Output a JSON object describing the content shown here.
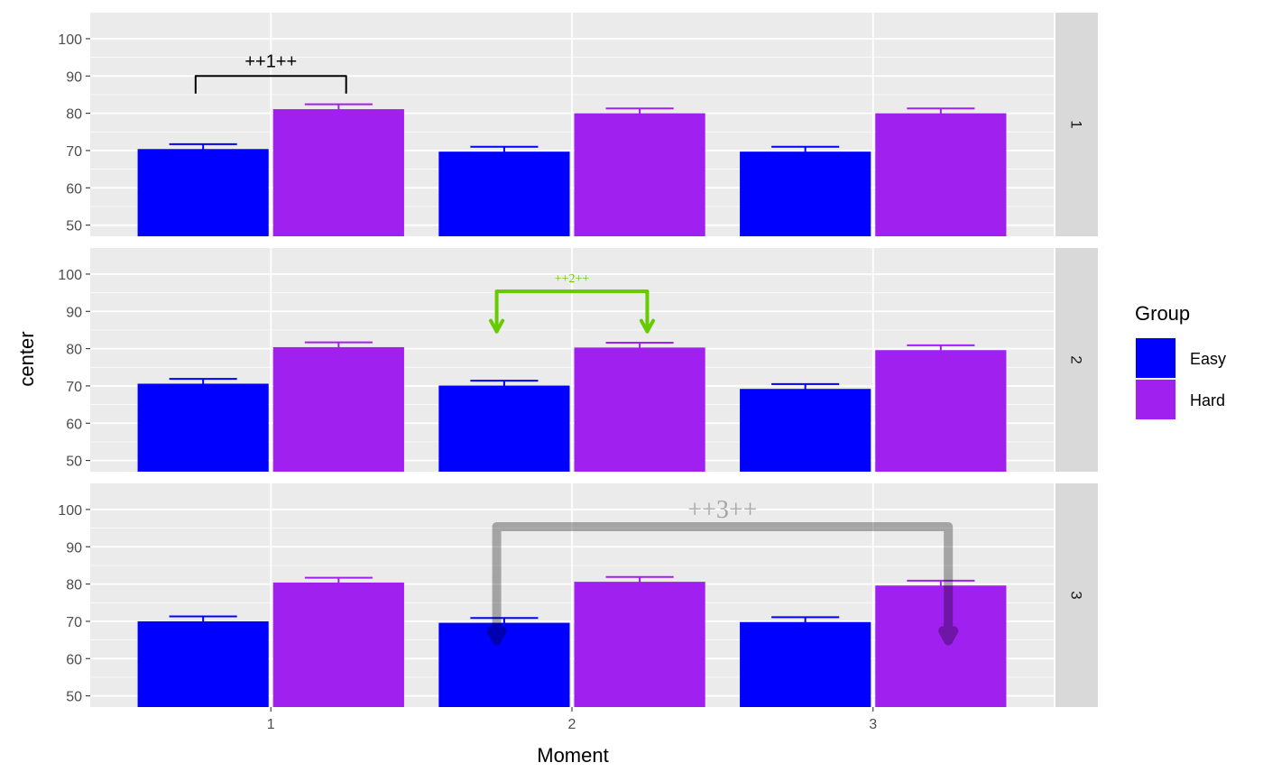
{
  "chart_data": {
    "type": "bar",
    "xlabel": "Moment",
    "ylabel": "center",
    "categories": [
      "1",
      "2",
      "3"
    ],
    "ylim": [
      47,
      107
    ],
    "yticks": [
      50,
      60,
      70,
      80,
      90,
      100
    ],
    "grid": true,
    "colors": {
      "Easy": "#0000FF",
      "Hard": "#A020F0",
      "panel": "#EBEBEB",
      "strip": "#D9D9D9"
    },
    "legend": {
      "title": "Group",
      "position": "right",
      "entries": [
        "Easy",
        "Hard"
      ]
    },
    "facets": [
      {
        "label": "1",
        "series": [
          {
            "name": "Easy",
            "values": [
              70.4,
              69.7,
              69.7
            ],
            "errors": [
              1.3,
              1.3,
              1.3
            ]
          },
          {
            "name": "Hard",
            "values": [
              81.1,
              80.0,
              80.0
            ],
            "errors": [
              1.3,
              1.3,
              1.3
            ]
          }
        ],
        "bracket": {
          "label": "++1++",
          "from": 0.75,
          "to": 1.25,
          "y": 90,
          "tip_y": 85.3,
          "color": "#000000",
          "opacity": 1,
          "arrow": false,
          "label_size": 20
        }
      },
      {
        "label": "2",
        "series": [
          {
            "name": "Easy",
            "values": [
              70.6,
              70.1,
              69.2
            ],
            "errors": [
              1.3,
              1.3,
              1.3
            ]
          },
          {
            "name": "Hard",
            "values": [
              80.4,
              80.3,
              79.6
            ],
            "errors": [
              1.3,
              1.3,
              1.3
            ]
          }
        ],
        "bracket": {
          "label": "++2++",
          "from": 1.75,
          "to": 2.25,
          "y": 95.4,
          "tip_y": 84.6,
          "color": "#66CC00",
          "opacity": 1,
          "arrow": true,
          "label_size": 14
        }
      },
      {
        "label": "3",
        "series": [
          {
            "name": "Easy",
            "values": [
              70.0,
              69.6,
              69.8
            ],
            "errors": [
              1.3,
              1.3,
              1.3
            ]
          },
          {
            "name": "Hard",
            "values": [
              80.4,
              80.6,
              79.6
            ],
            "errors": [
              1.3,
              1.3,
              1.3
            ]
          }
        ],
        "bracket": {
          "label": "++3++",
          "from": 1.75,
          "to": 3.25,
          "y": 95.4,
          "tip_y": 64.8,
          "color": "#000000",
          "opacity": 0.3,
          "arrow": true,
          "label_size": 28
        }
      }
    ]
  }
}
